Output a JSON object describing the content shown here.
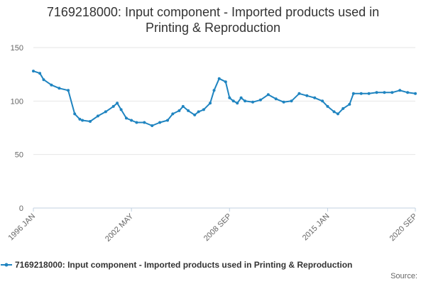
{
  "chart_data": {
    "type": "line",
    "title_line1": "7169218000: Input component - Imported products used in",
    "title_line2": "Printing & Reproduction",
    "xlabel": "",
    "ylabel": "",
    "ylim": [
      0,
      150
    ],
    "yticks": [
      "0",
      "50",
      "100",
      "150"
    ],
    "xticks": [
      "1996 JAN",
      "2002 MAY",
      "2008 SEP",
      "2015 JAN",
      "2020 SEP"
    ],
    "grid": true,
    "legend_position": "bottom",
    "series": [
      {
        "name": "7169218000: Input component - Imported products used in Printing & Reproduction",
        "color": "#1f84c0",
        "x": [
          "1996-01",
          "1996-06",
          "1996-09",
          "1997-03",
          "1997-09",
          "1998-04",
          "1998-09",
          "1999-01",
          "1999-03",
          "1999-09",
          "2000-03",
          "2000-09",
          "2001-03",
          "2001-06",
          "2001-09",
          "2002-01",
          "2002-05",
          "2002-09",
          "2003-03",
          "2003-09",
          "2004-03",
          "2004-09",
          "2005-01",
          "2005-06",
          "2005-09",
          "2006-01",
          "2006-06",
          "2006-09",
          "2007-01",
          "2007-06",
          "2007-09",
          "2008-01",
          "2008-06",
          "2008-09",
          "2008-12",
          "2009-03",
          "2009-06",
          "2009-09",
          "2010-03",
          "2010-09",
          "2011-03",
          "2011-09",
          "2012-03",
          "2012-09",
          "2013-03",
          "2013-09",
          "2014-03",
          "2014-09",
          "2015-01",
          "2015-06",
          "2015-09",
          "2016-01",
          "2016-06",
          "2016-09",
          "2017-03",
          "2017-09",
          "2018-03",
          "2018-09",
          "2019-03",
          "2019-09",
          "2020-03",
          "2020-09"
        ],
        "values": [
          128,
          126,
          120,
          115,
          112,
          110,
          88,
          83,
          82,
          81,
          86,
          90,
          95,
          98,
          92,
          84,
          82,
          80,
          80,
          77,
          80,
          82,
          88,
          91,
          95,
          91,
          87,
          90,
          92,
          98,
          110,
          121,
          118,
          103,
          100,
          98,
          103,
          100,
          99,
          101,
          106,
          102,
          99,
          100,
          107,
          105,
          103,
          100,
          95,
          90,
          88,
          93,
          97,
          107,
          107,
          107,
          108,
          108,
          108,
          110,
          108,
          107
        ]
      }
    ]
  },
  "legend": {
    "label": "7169218000: Input component - Imported products used in Printing & Reproduction"
  },
  "source_label": "Source:"
}
